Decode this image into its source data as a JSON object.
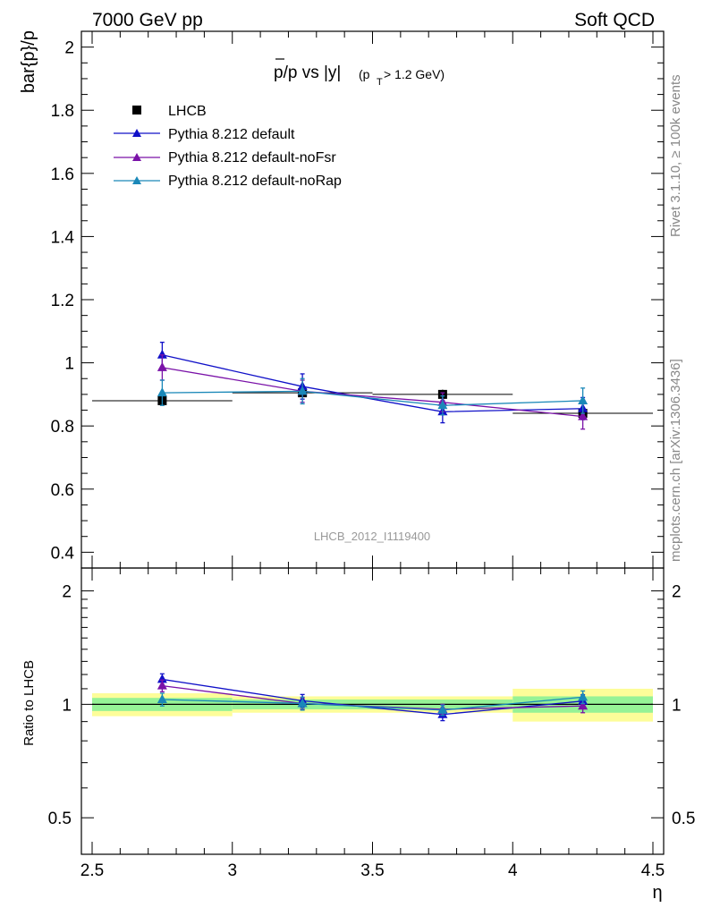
{
  "header": {
    "left": "7000 GeV pp",
    "right": "Soft QCD"
  },
  "side": {
    "rivet": "Rivet 3.1.10, ≥ 100k events",
    "mcplots": "mcplots.cern.ch [arXiv:1306.3436]"
  },
  "chart_data": [
    {
      "type": "line",
      "title": "p̄/p vs |y|(p_T > 1.2 GeV)",
      "title_main": "p/p vs |y|",
      "title_sub": "(p",
      "title_sub_T": "T",
      "title_sub_rest": " > 1.2 GeV)",
      "ylabel": "bar{p}/p",
      "watermark": "LHCB_2012_I1119400",
      "xlim": [
        2.5,
        4.5
      ],
      "ylim": [
        0.35,
        2.05
      ],
      "yticks": [
        0.4,
        0.6,
        0.8,
        1,
        1.2,
        1.4,
        1.6,
        1.8,
        2
      ],
      "ytick_labels": [
        "0.4",
        "0.6",
        "0.8",
        "1",
        "1.2",
        "1.4",
        "1.6",
        "1.8",
        "2"
      ],
      "legend_position": "top-left",
      "x": [
        2.75,
        3.25,
        3.75,
        4.25
      ],
      "data": {
        "name": "LHCB",
        "values": [
          0.88,
          0.905,
          0.9,
          0.84
        ],
        "errors": [
          0.01,
          0.015,
          0.015,
          0.015
        ],
        "xerr": 0.25
      },
      "series": [
        {
          "name": "Pythia 8.212 default",
          "color": "#1010c8",
          "values": [
            1.025,
            0.925,
            0.845,
            0.855
          ],
          "errors": [
            0.04,
            0.04,
            0.035,
            0.035
          ]
        },
        {
          "name": "Pythia 8.212 default-noFsr",
          "color": "#7a12a8",
          "values": [
            0.985,
            0.91,
            0.875,
            0.83
          ],
          "errors": [
            0.04,
            0.035,
            0.03,
            0.04
          ]
        },
        {
          "name": "Pythia 8.212 default-noRap",
          "color": "#1a88b8",
          "values": [
            0.905,
            0.91,
            0.865,
            0.88
          ],
          "errors": [
            0.04,
            0.04,
            0.03,
            0.04
          ]
        }
      ]
    },
    {
      "type": "line",
      "ylabel": "Ratio to LHCB",
      "xlabel": "η",
      "xlim": [
        2.5,
        4.5
      ],
      "ylim": [
        0.4,
        2.3
      ],
      "log_y": true,
      "yticks": [
        0.5,
        1,
        2
      ],
      "ytick_labels": [
        "0.5",
        "1",
        "2"
      ],
      "xticks": [
        2.5,
        3,
        3.5,
        4,
        4.5
      ],
      "xtick_labels": [
        "2.5",
        "3",
        "3.5",
        "4",
        "4.5"
      ],
      "x": [
        2.75,
        3.25,
        3.75,
        4.25
      ],
      "bands": [
        {
          "x": [
            2.5,
            3.0
          ],
          "green": [
            0.96,
            1.04
          ],
          "yellow": [
            0.93,
            1.07
          ]
        },
        {
          "x": [
            3.0,
            3.5
          ],
          "green": [
            0.97,
            1.03
          ],
          "yellow": [
            0.95,
            1.05
          ]
        },
        {
          "x": [
            3.5,
            4.0
          ],
          "green": [
            0.97,
            1.03
          ],
          "yellow": [
            0.95,
            1.05
          ]
        },
        {
          "x": [
            4.0,
            4.5
          ],
          "green": [
            0.95,
            1.05
          ],
          "yellow": [
            0.9,
            1.1
          ]
        }
      ],
      "series": [
        {
          "name": "Pythia 8.212 default",
          "color": "#1010c8",
          "values": [
            1.165,
            1.022,
            0.94,
            1.02
          ],
          "errors": [
            0.04,
            0.04,
            0.035,
            0.04
          ]
        },
        {
          "name": "Pythia 8.212 default-noFsr",
          "color": "#7a12a8",
          "values": [
            1.12,
            1.005,
            0.97,
            0.99
          ],
          "errors": [
            0.04,
            0.035,
            0.03,
            0.04
          ]
        },
        {
          "name": "Pythia 8.212 default-noRap",
          "color": "#1a88b8",
          "values": [
            1.03,
            1.005,
            0.965,
            1.045
          ],
          "errors": [
            0.04,
            0.04,
            0.03,
            0.04
          ]
        }
      ]
    }
  ]
}
